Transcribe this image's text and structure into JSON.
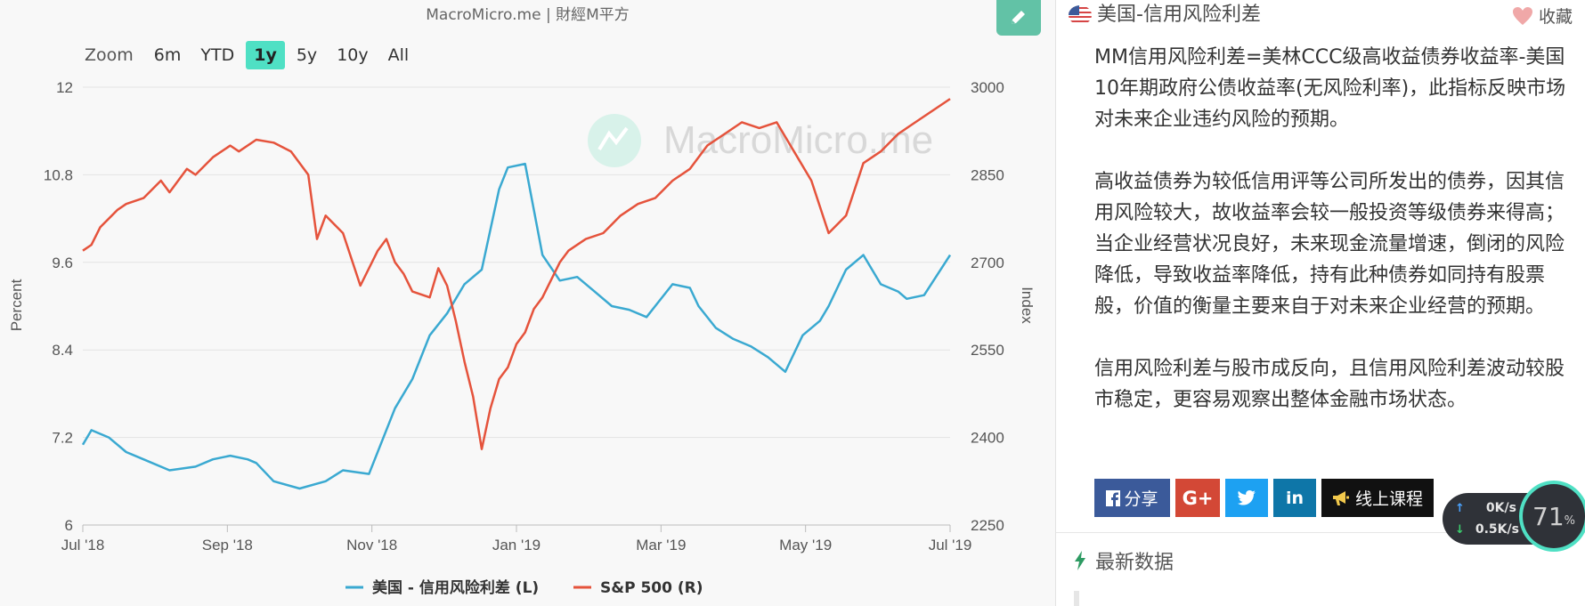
{
  "header": {
    "credit": "MacroMicro.me | 財經M平方"
  },
  "zoom": {
    "label": "Zoom",
    "buttons": [
      "6m",
      "YTD",
      "1y",
      "5y",
      "10y",
      "All"
    ],
    "active": "1y"
  },
  "watermark": "MacroMicro.me",
  "chart_data": {
    "type": "line",
    "x_labels": [
      "Jul '18",
      "Sep '18",
      "Nov '18",
      "Jan '19",
      "Mar '19",
      "May '19",
      "Jul '19"
    ],
    "x_range": [
      "2018-07",
      "2019-07"
    ],
    "y_left": {
      "label": "Percent",
      "ticks": [
        "12",
        "10.8",
        "9.6",
        "8.4",
        "7.2",
        "6"
      ],
      "range": [
        6,
        12
      ]
    },
    "y_right": {
      "label": "Index",
      "ticks": [
        "3000",
        "2850",
        "2700",
        "2550",
        "2400",
        "2250"
      ],
      "range": [
        2250,
        3000
      ]
    },
    "grid": true,
    "legend_position": "bottom",
    "series": [
      {
        "name": "美国 - 信用风险利差 (L)",
        "axis": "left",
        "color": "#3aa9d1",
        "x": [
          0.0,
          0.01,
          0.03,
          0.05,
          0.07,
          0.1,
          0.13,
          0.15,
          0.17,
          0.19,
          0.2,
          0.22,
          0.25,
          0.28,
          0.3,
          0.33,
          0.36,
          0.38,
          0.4,
          0.42,
          0.44,
          0.46,
          0.48,
          0.49,
          0.51,
          0.53,
          0.55,
          0.57,
          0.59,
          0.61,
          0.63,
          0.65,
          0.66,
          0.68,
          0.7,
          0.71,
          0.73,
          0.75,
          0.77,
          0.79,
          0.81,
          0.83,
          0.85,
          0.86,
          0.88,
          0.9,
          0.92,
          0.94,
          0.95,
          0.97,
          1.0
        ],
        "values": [
          7.1,
          7.3,
          7.2,
          7.0,
          6.9,
          6.75,
          6.8,
          6.9,
          6.95,
          6.9,
          6.85,
          6.6,
          6.5,
          6.6,
          6.75,
          6.7,
          7.6,
          8.0,
          8.6,
          8.9,
          9.3,
          9.5,
          10.6,
          10.9,
          10.95,
          9.7,
          9.35,
          9.4,
          9.2,
          9.0,
          8.95,
          8.85,
          9.0,
          9.3,
          9.25,
          9.0,
          8.7,
          8.55,
          8.45,
          8.3,
          8.1,
          8.6,
          8.8,
          9.0,
          9.5,
          9.7,
          9.3,
          9.2,
          9.1,
          9.15,
          9.7
        ]
      },
      {
        "name": "S&P 500 (R)",
        "axis": "right",
        "color": "#e5533c",
        "x": [
          0.0,
          0.01,
          0.02,
          0.04,
          0.05,
          0.07,
          0.09,
          0.1,
          0.12,
          0.13,
          0.15,
          0.17,
          0.18,
          0.2,
          0.22,
          0.24,
          0.26,
          0.27,
          0.28,
          0.3,
          0.32,
          0.34,
          0.35,
          0.36,
          0.37,
          0.38,
          0.4,
          0.41,
          0.42,
          0.43,
          0.44,
          0.45,
          0.46,
          0.47,
          0.48,
          0.49,
          0.5,
          0.51,
          0.52,
          0.53,
          0.55,
          0.56,
          0.58,
          0.6,
          0.62,
          0.64,
          0.66,
          0.68,
          0.7,
          0.72,
          0.74,
          0.76,
          0.78,
          0.8,
          0.82,
          0.84,
          0.86,
          0.88,
          0.9,
          0.92,
          0.94,
          0.96,
          1.0
        ],
        "values": [
          2720,
          2730,
          2760,
          2790,
          2800,
          2810,
          2840,
          2820,
          2860,
          2850,
          2880,
          2900,
          2890,
          2910,
          2905,
          2890,
          2850,
          2740,
          2780,
          2750,
          2660,
          2720,
          2740,
          2700,
          2680,
          2650,
          2640,
          2690,
          2660,
          2600,
          2530,
          2470,
          2380,
          2450,
          2500,
          2520,
          2560,
          2580,
          2620,
          2640,
          2700,
          2720,
          2740,
          2750,
          2780,
          2800,
          2810,
          2840,
          2860,
          2900,
          2920,
          2940,
          2930,
          2940,
          2890,
          2840,
          2750,
          2780,
          2870,
          2890,
          2920,
          2940,
          2980
        ]
      }
    ]
  },
  "side": {
    "title": "美国-信用风险利差",
    "favorite_label": "收藏",
    "paragraphs": [
      "MM信用风险利差=美林CCC级高收益债券收益率-美国10年期政府公债收益率(无风险利率)，此指标反映市场对未来企业违约风险的预期。",
      "高收益债券为较低信用评等公司所发出的债券，因其信用风险较大，故收益率会较一般投资等级债券来得高；当企业经营状况良好，未来现金流量增速，倒闭的风险降低，导致收益率降低，持有此种债券如同持有股票般，价值的衡量主要来自于对未来企业经营的预期。",
      "信用风险利差与股市成反向，且信用风险利差波动较股市稳定，更容易观察出整体金融市场状态。"
    ],
    "share": {
      "facebook": "分享",
      "google": "G+",
      "linkedin": "in",
      "course": "线上课程"
    },
    "latest_label": "最新数据"
  },
  "speed_widget": {
    "up": "0K/s",
    "down": "0.5K/s",
    "percent": "71",
    "percent_suffix": "%"
  },
  "icons": {
    "edit": "pencil-icon",
    "flag": "us-flag-icon",
    "favorite": "heart-icon",
    "facebook": "facebook-icon",
    "twitter": "twitter-icon",
    "course": "megaphone-icon",
    "latest": "lightning-icon"
  }
}
